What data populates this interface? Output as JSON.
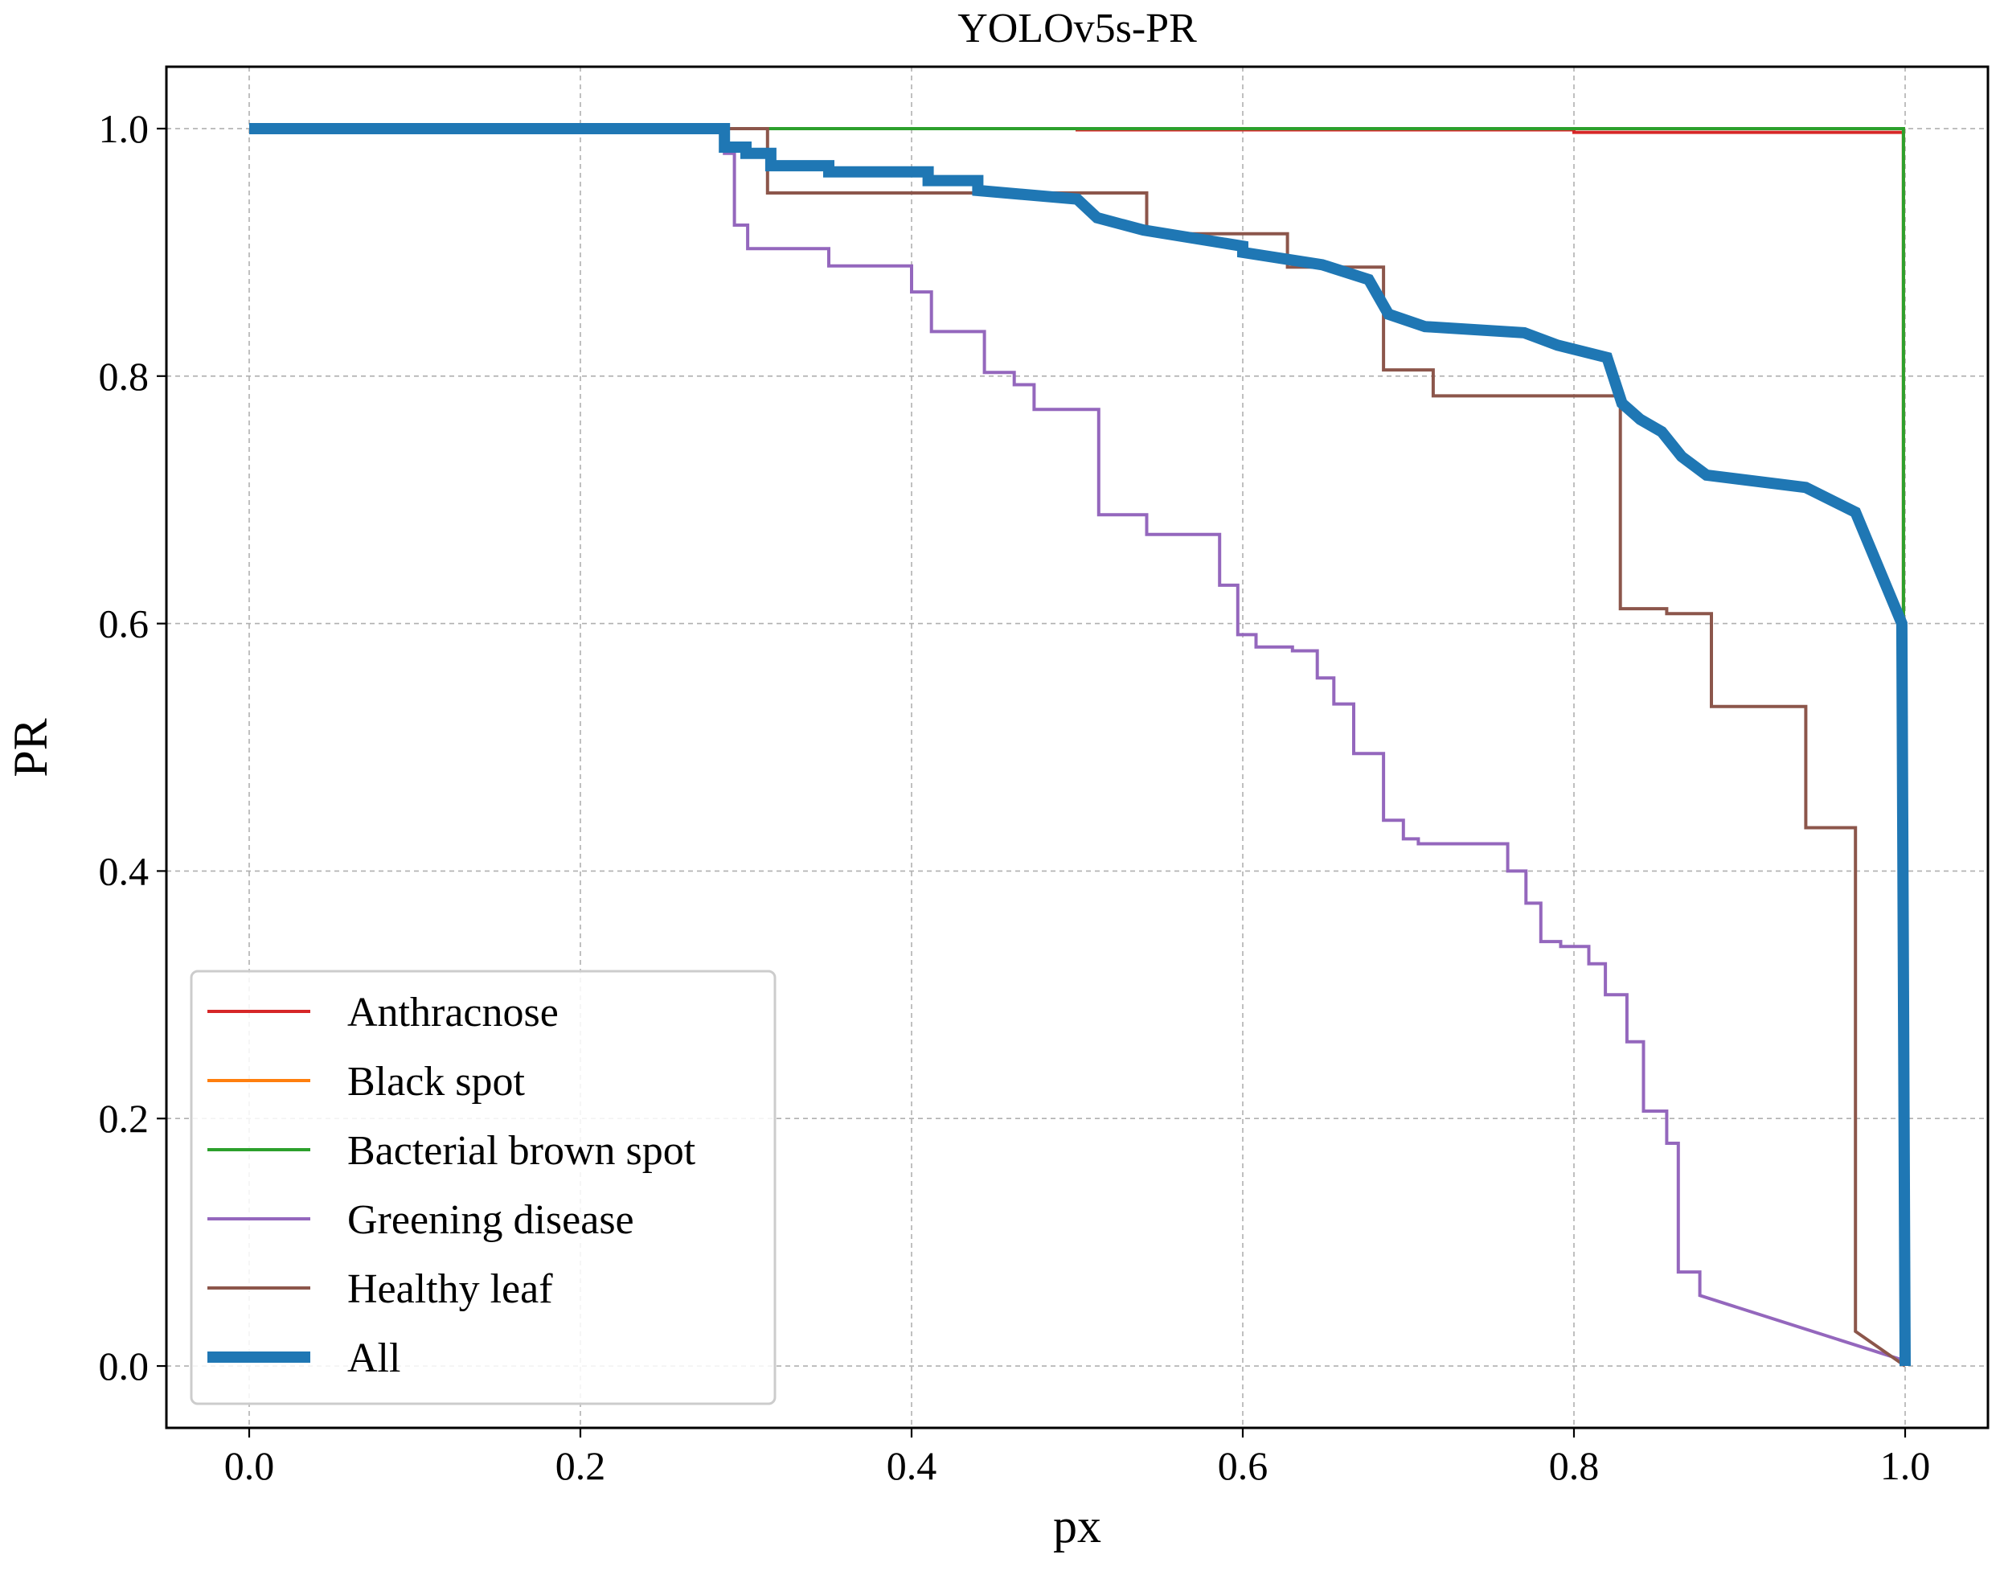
{
  "chart_data": {
    "type": "line",
    "title": "YOLOv5s-PR",
    "xlabel": "px",
    "ylabel": "PR",
    "xlim": [
      -0.05,
      1.05
    ],
    "ylim": [
      -0.05,
      1.05
    ],
    "xticks": [
      0.0,
      0.2,
      0.4,
      0.6,
      0.8,
      1.0
    ],
    "yticks": [
      0.0,
      0.2,
      0.4,
      0.6,
      0.8,
      1.0
    ],
    "xtick_labels": [
      "0.0",
      "0.2",
      "0.4",
      "0.6",
      "0.8",
      "1.0"
    ],
    "ytick_labels": [
      "0.0",
      "0.2",
      "0.4",
      "0.6",
      "0.8",
      "1.0"
    ],
    "grid": true,
    "legend_position": "lower-left",
    "series": [
      {
        "name": "Anthracnose",
        "color": "#d62728",
        "width": 2,
        "x": [
          0.0,
          0.5,
          0.5,
          0.8,
          0.8,
          0.999,
          0.999,
          1.0
        ],
        "y": [
          1.0,
          1.0,
          0.999,
          0.999,
          0.997,
          0.997,
          0.5,
          0.0
        ]
      },
      {
        "name": "Black spot",
        "color": "#ff7f0e",
        "width": 2,
        "x": [
          0.0,
          0.999,
          0.999,
          1.0
        ],
        "y": [
          1.0,
          1.0,
          0.6,
          0.0
        ]
      },
      {
        "name": "Bacterial brown spot",
        "color": "#2ca02c",
        "width": 2,
        "x": [
          0.0,
          0.999,
          0.999,
          1.0
        ],
        "y": [
          1.0,
          1.0,
          0.6,
          0.0
        ]
      },
      {
        "name": "Greening disease",
        "color": "#9467bd",
        "width": 2,
        "x": [
          0.0,
          0.287,
          0.287,
          0.293,
          0.293,
          0.301,
          0.301,
          0.35,
          0.35,
          0.4,
          0.4,
          0.412,
          0.412,
          0.444,
          0.444,
          0.462,
          0.462,
          0.474,
          0.474,
          0.513,
          0.513,
          0.542,
          0.542,
          0.586,
          0.586,
          0.597,
          0.597,
          0.608,
          0.608,
          0.63,
          0.63,
          0.645,
          0.645,
          0.655,
          0.655,
          0.667,
          0.667,
          0.685,
          0.685,
          0.697,
          0.697,
          0.706,
          0.706,
          0.76,
          0.76,
          0.771,
          0.771,
          0.78,
          0.78,
          0.792,
          0.792,
          0.809,
          0.809,
          0.819,
          0.819,
          0.832,
          0.832,
          0.842,
          0.842,
          0.856,
          0.856,
          0.863,
          0.863,
          0.876,
          0.876,
          0.998,
          1.0
        ],
        "y": [
          1.0,
          1.0,
          0.98,
          0.98,
          0.922,
          0.922,
          0.903,
          0.903,
          0.889,
          0.889,
          0.868,
          0.868,
          0.836,
          0.836,
          0.803,
          0.803,
          0.793,
          0.793,
          0.773,
          0.773,
          0.688,
          0.688,
          0.672,
          0.672,
          0.631,
          0.631,
          0.591,
          0.591,
          0.581,
          0.581,
          0.578,
          0.578,
          0.556,
          0.556,
          0.535,
          0.535,
          0.495,
          0.495,
          0.441,
          0.441,
          0.426,
          0.426,
          0.422,
          0.422,
          0.4,
          0.4,
          0.374,
          0.374,
          0.343,
          0.343,
          0.339,
          0.339,
          0.325,
          0.325,
          0.3,
          0.3,
          0.262,
          0.262,
          0.206,
          0.206,
          0.18,
          0.18,
          0.076,
          0.076,
          0.057,
          0.005,
          0.0
        ]
      },
      {
        "name": "Healthy leaf",
        "color": "#8c564b",
        "width": 2,
        "x": [
          0.0,
          0.313,
          0.313,
          0.542,
          0.542,
          0.627,
          0.627,
          0.685,
          0.685,
          0.715,
          0.715,
          0.828,
          0.828,
          0.856,
          0.856,
          0.883,
          0.883,
          0.94,
          0.94,
          0.97,
          0.97,
          1.0
        ],
        "y": [
          1.0,
          1.0,
          0.948,
          0.948,
          0.915,
          0.915,
          0.888,
          0.888,
          0.805,
          0.805,
          0.784,
          0.784,
          0.612,
          0.612,
          0.608,
          0.608,
          0.533,
          0.533,
          0.435,
          0.435,
          0.028,
          0.0
        ]
      },
      {
        "name": "All",
        "color": "#1f77b4",
        "width": 7,
        "x": [
          0.0,
          0.287,
          0.287,
          0.3,
          0.3,
          0.315,
          0.315,
          0.35,
          0.35,
          0.41,
          0.41,
          0.44,
          0.44,
          0.5,
          0.5,
          0.512,
          0.512,
          0.54,
          0.54,
          0.6,
          0.6,
          0.648,
          0.648,
          0.676,
          0.676,
          0.688,
          0.688,
          0.71,
          0.71,
          0.77,
          0.77,
          0.79,
          0.79,
          0.82,
          0.82,
          0.829,
          0.829,
          0.84,
          0.84,
          0.853,
          0.853,
          0.865,
          0.865,
          0.88,
          0.88,
          0.94,
          0.94,
          0.97,
          0.97,
          0.998,
          1.0
        ],
        "y": [
          1.0,
          1.0,
          0.985,
          0.985,
          0.98,
          0.98,
          0.97,
          0.97,
          0.965,
          0.965,
          0.958,
          0.958,
          0.95,
          0.943,
          0.943,
          0.928,
          0.928,
          0.918,
          0.918,
          0.905,
          0.9,
          0.89,
          0.89,
          0.878,
          0.878,
          0.85,
          0.85,
          0.84,
          0.84,
          0.835,
          0.835,
          0.825,
          0.825,
          0.815,
          0.815,
          0.778,
          0.778,
          0.765,
          0.765,
          0.755,
          0.755,
          0.735,
          0.735,
          0.72,
          0.72,
          0.71,
          0.71,
          0.69,
          0.69,
          0.6,
          0.0
        ]
      }
    ]
  }
}
